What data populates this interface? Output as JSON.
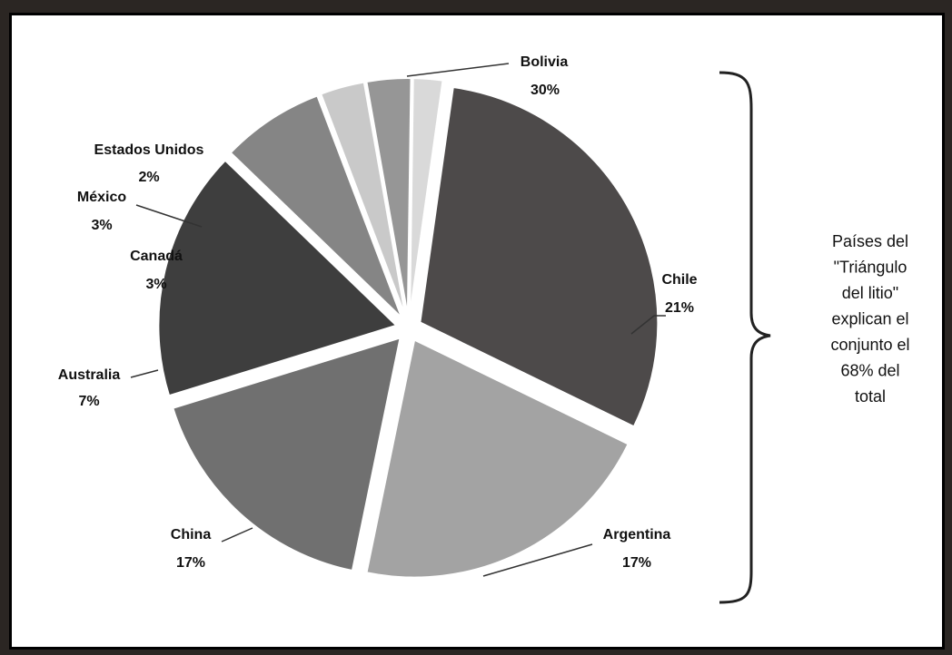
{
  "chart_data": {
    "type": "pie",
    "exploded": true,
    "slices": [
      {
        "name": "Bolivia",
        "value": 30,
        "label": "30%",
        "color": "#4d4a4a"
      },
      {
        "name": "Chile",
        "value": 21,
        "label": "21%",
        "color": "#a3a3a3"
      },
      {
        "name": "Argentina",
        "value": 17,
        "label": "17%",
        "color": "#707070"
      },
      {
        "name": "China",
        "value": 17,
        "label": "17%",
        "color": "#3e3e3e"
      },
      {
        "name": "Australia",
        "value": 7,
        "label": "7%",
        "color": "#858585"
      },
      {
        "name": "Canadá",
        "value": 3,
        "label": "3%",
        "color": "#c9c9c9"
      },
      {
        "name": "México",
        "value": 3,
        "label": "3%",
        "color": "#969696"
      },
      {
        "name": "Estados Unidos",
        "value": 2,
        "label": "2%",
        "color": "#d9d9d9"
      }
    ],
    "annotation": {
      "lines": [
        "Países del",
        "\"Triángulo",
        "del litio\"",
        "explican el",
        "conjunto el",
        "68% del",
        "total"
      ]
    }
  },
  "colors": {
    "frame": "#2b2623",
    "panel": "#ffffff",
    "leader": "#333333"
  }
}
